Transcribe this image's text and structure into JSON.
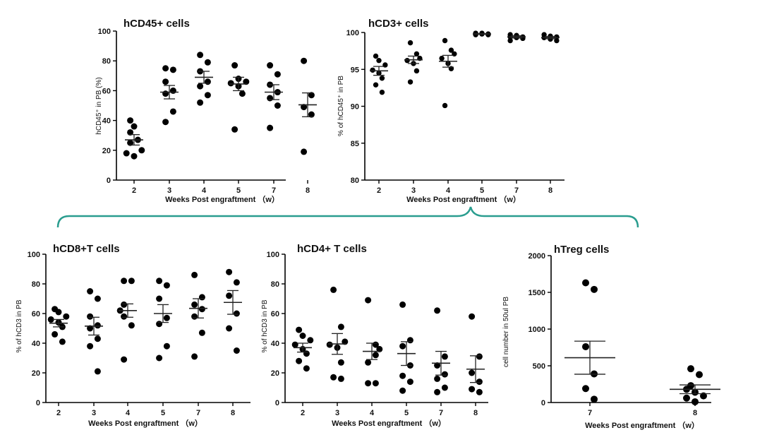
{
  "bracket_color": "#2a9d8f",
  "chart_data": [
    {
      "type": "scatter",
      "title": "hCD45+ cells",
      "xlabel": "Weeks Post engraftment （w）",
      "ylabel": "hCD45⁺ in PB (%)",
      "ylim": [
        0,
        100
      ],
      "yticks": [
        0,
        20,
        40,
        60,
        80,
        100
      ],
      "categories": [
        "2",
        "3",
        "4",
        "5",
        "7",
        "8"
      ],
      "mean": [
        27,
        59,
        69,
        64.5,
        59,
        50.5
      ],
      "sem": [
        3.5,
        4.5,
        4,
        4.5,
        5,
        8
      ],
      "points": [
        [
          40,
          36,
          32,
          27,
          25,
          20,
          18,
          16
        ],
        [
          75,
          74,
          66,
          60,
          58,
          46,
          39
        ],
        [
          84,
          79,
          73,
          66,
          63,
          57,
          52
        ],
        [
          77,
          68,
          66,
          65,
          63,
          58,
          34
        ],
        [
          77,
          71,
          64,
          59,
          55,
          50,
          35
        ],
        [
          80,
          57,
          49,
          44,
          19
        ]
      ]
    },
    {
      "type": "scatter",
      "title": "hCD3+ cells",
      "xlabel": "Weeks Post engraftment （w）",
      "ylabel": "% of hCD45⁺ in PB",
      "ylim": [
        80,
        100
      ],
      "yticks": [
        80,
        85,
        90,
        95,
        100
      ],
      "categories": [
        "2",
        "3",
        "4",
        "5",
        "7",
        "8"
      ],
      "mean": [
        94.8,
        96.3,
        96.1,
        99.8,
        99.4,
        99.3
      ],
      "sem": [
        0.6,
        0.5,
        0.8,
        0.05,
        0.15,
        0.15
      ],
      "points": [
        [
          96.8,
          96.2,
          95.6,
          94.9,
          94.5,
          93.8,
          92.9,
          91.9
        ],
        [
          98.6,
          97.1,
          96.5,
          96.2,
          95.8,
          94.8,
          93.3
        ],
        [
          98.9,
          97.6,
          97.1,
          96.5,
          95.8,
          95.1,
          90.1
        ],
        [
          99.9,
          99.9,
          99.8,
          99.8,
          99.8,
          99.7,
          99.7
        ],
        [
          99.7,
          99.6,
          99.4,
          99.4,
          99.3,
          99.2,
          98.9
        ],
        [
          99.7,
          99.5,
          99.4,
          99.3,
          99.1,
          98.9
        ]
      ]
    },
    {
      "type": "scatter",
      "title": "hCD8+T cells",
      "xlabel": "Weeks Post engraftment （w）",
      "ylabel": "% of hCD3 in PB",
      "ylim": [
        0,
        100
      ],
      "yticks": [
        0,
        20,
        40,
        60,
        80,
        100
      ],
      "categories": [
        "2",
        "3",
        "4",
        "5",
        "7",
        "8"
      ],
      "mean": [
        53.5,
        51.5,
        62,
        60,
        63.5,
        67.5
      ],
      "sem": [
        2.5,
        6,
        4.5,
        6,
        6.5,
        8
      ],
      "points": [
        [
          63,
          61,
          58,
          56,
          54,
          51,
          46,
          41
        ],
        [
          75,
          70,
          58,
          52,
          50,
          43,
          38,
          21
        ],
        [
          82,
          82,
          66,
          62,
          58,
          52,
          29
        ],
        [
          82,
          79,
          70,
          57,
          53,
          38,
          30
        ],
        [
          86,
          71,
          66,
          63,
          58,
          47,
          31
        ],
        [
          88,
          81,
          72,
          60,
          50,
          35
        ]
      ]
    },
    {
      "type": "scatter",
      "title": "hCD4+ T cells",
      "xlabel": "Weeks Post engraftment （w）",
      "ylabel": "% of hCD3 in PB",
      "ylim": [
        0,
        100
      ],
      "yticks": [
        0,
        20,
        40,
        60,
        80,
        100
      ],
      "categories": [
        "2",
        "3",
        "4",
        "5",
        "7",
        "8"
      ],
      "mean": [
        37,
        39.5,
        34.5,
        33,
        26.5,
        22.5
      ],
      "sem": [
        3,
        7,
        5.5,
        8,
        8,
        9
      ],
      "points": [
        [
          49,
          45,
          42,
          39,
          36,
          33,
          28,
          23
        ],
        [
          76,
          51,
          41,
          39,
          37,
          27,
          17,
          16
        ],
        [
          69,
          39,
          36,
          32,
          27,
          13,
          13
        ],
        [
          66,
          42,
          38,
          25,
          18,
          14,
          8
        ],
        [
          62,
          31,
          25,
          19,
          16,
          10,
          7
        ],
        [
          58,
          31,
          20,
          14,
          9,
          7
        ]
      ]
    },
    {
      "type": "scatter",
      "title": "hTreg cells",
      "xlabel": "Weeks Post engraftment （w）",
      "ylabel": "cell number in 50ul PB",
      "ylim": [
        0,
        2000
      ],
      "yticks": [
        0,
        500,
        1000,
        1500,
        2000
      ],
      "categories": [
        "7",
        "8"
      ],
      "mean": [
        610,
        180
      ],
      "sem": [
        225,
        60
      ],
      "points": [
        [
          1630,
          1540,
          760,
          390,
          190,
          45
        ],
        [
          460,
          380,
          230,
          180,
          140,
          90,
          60,
          10
        ]
      ]
    }
  ]
}
